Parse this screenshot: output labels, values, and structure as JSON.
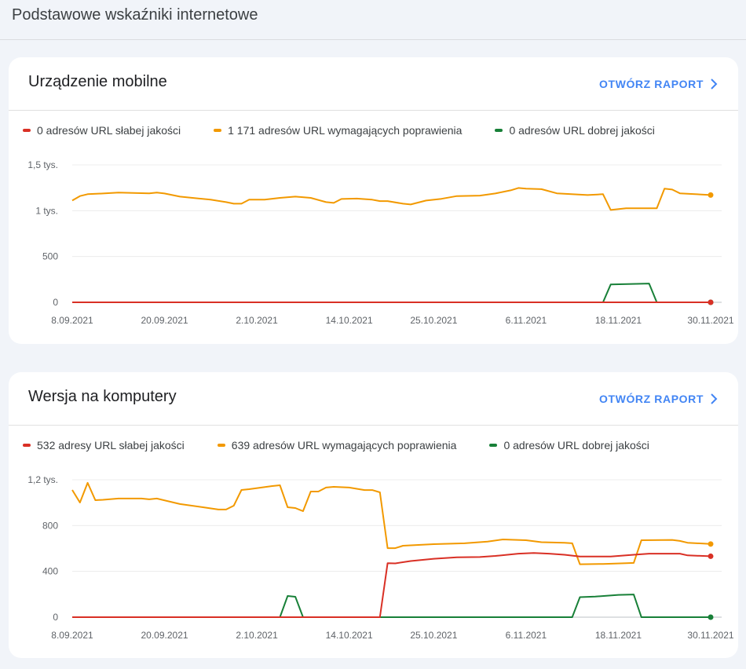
{
  "page": {
    "title": "Podstawowe wskaźniki internetowe"
  },
  "colors": {
    "poor": "#d93025",
    "needs_improvement": "#f29900",
    "good": "#188038",
    "link": "#4285f4"
  },
  "cards": [
    {
      "title": "Urządzenie mobilne",
      "link_label": "OTWÓRZ RAPORT",
      "link_icon": "chevron-right-icon",
      "legend": [
        {
          "label": "0 adresów URL słabej jakości",
          "key": "poor"
        },
        {
          "label": "1 171 adresów URL wymagających poprawienia",
          "key": "needs_improvement"
        },
        {
          "label": "0 adresów URL dobrej jakości",
          "key": "good"
        }
      ]
    },
    {
      "title": "Wersja na komputery",
      "link_label": "OTWÓRZ RAPORT",
      "link_icon": "chevron-right-icon",
      "legend": [
        {
          "label": "532 adresy URL słabej jakości",
          "key": "poor"
        },
        {
          "label": "639 adresów URL wymagających poprawienia",
          "key": "needs_improvement"
        },
        {
          "label": "0 adresów URL dobrej jakości",
          "key": "good"
        }
      ]
    }
  ],
  "chart_data": [
    {
      "type": "line",
      "xlim": [
        "2021-09-08",
        "2021-11-30"
      ],
      "ylim": [
        0,
        1500
      ],
      "yticks": [
        0,
        500,
        1000,
        1500
      ],
      "ytick_labels": [
        "0",
        "500",
        "1 tys.",
        "1,5 tys."
      ],
      "xticks": [
        "2021-09-08",
        "2021-09-20",
        "2021-10-02",
        "2021-10-14",
        "2021-10-25",
        "2021-11-06",
        "2021-11-18",
        "2021-11-30"
      ],
      "xtick_labels": [
        "8.09.2021",
        "20.09.2021",
        "2.10.2021",
        "14.10.2021",
        "25.10.2021",
        "6.11.2021",
        "18.11.2021",
        "30.11.2021"
      ],
      "grid": true,
      "series": [
        {
          "key": "good",
          "points": [
            [
              "2021-09-08",
              0
            ],
            [
              "2021-11-16",
              0
            ],
            [
              "2021-11-17",
              195
            ],
            [
              "2021-11-22",
              205
            ],
            [
              "2021-11-23",
              0
            ],
            [
              "2021-11-30",
              0
            ]
          ]
        },
        {
          "key": "needs_improvement",
          "points": [
            [
              "2021-09-08",
              1111
            ],
            [
              "2021-09-09",
              1160
            ],
            [
              "2021-09-10",
              1180
            ],
            [
              "2021-09-12",
              1188
            ],
            [
              "2021-09-14",
              1197
            ],
            [
              "2021-09-18",
              1190
            ],
            [
              "2021-09-19",
              1197
            ],
            [
              "2021-09-20",
              1188
            ],
            [
              "2021-09-22",
              1154
            ],
            [
              "2021-09-26",
              1120
            ],
            [
              "2021-09-28",
              1094
            ],
            [
              "2021-09-29",
              1077
            ],
            [
              "2021-09-30",
              1077
            ],
            [
              "2021-10-01",
              1120
            ],
            [
              "2021-10-03",
              1120
            ],
            [
              "2021-10-05",
              1140
            ],
            [
              "2021-10-07",
              1154
            ],
            [
              "2021-10-09",
              1140
            ],
            [
              "2021-10-11",
              1094
            ],
            [
              "2021-10-12",
              1085
            ],
            [
              "2021-10-13",
              1128
            ],
            [
              "2021-10-15",
              1132
            ],
            [
              "2021-10-17",
              1120
            ],
            [
              "2021-10-18",
              1105
            ],
            [
              "2021-10-19",
              1105
            ],
            [
              "2021-10-21",
              1077
            ],
            [
              "2021-10-22",
              1068
            ],
            [
              "2021-10-24",
              1111
            ],
            [
              "2021-10-26",
              1130
            ],
            [
              "2021-10-28",
              1160
            ],
            [
              "2021-10-31",
              1165
            ],
            [
              "2021-11-02",
              1188
            ],
            [
              "2021-11-04",
              1222
            ],
            [
              "2021-11-05",
              1248
            ],
            [
              "2021-11-06",
              1240
            ],
            [
              "2021-11-08",
              1235
            ],
            [
              "2021-11-10",
              1190
            ],
            [
              "2021-11-14",
              1171
            ],
            [
              "2021-11-16",
              1180
            ],
            [
              "2021-11-17",
              1008
            ],
            [
              "2021-11-19",
              1026
            ],
            [
              "2021-11-23",
              1026
            ],
            [
              "2021-11-24",
              1240
            ],
            [
              "2021-11-25",
              1231
            ],
            [
              "2021-11-26",
              1190
            ],
            [
              "2021-11-30",
              1171
            ]
          ]
        },
        {
          "key": "poor",
          "points": [
            [
              "2021-09-08",
              0
            ],
            [
              "2021-11-30",
              0
            ]
          ]
        }
      ]
    },
    {
      "type": "line",
      "xlim": [
        "2021-09-08",
        "2021-11-30"
      ],
      "ylim": [
        0,
        1200
      ],
      "yticks": [
        0,
        400,
        800,
        1200
      ],
      "ytick_labels": [
        "0",
        "400",
        "800",
        "1,2 tys."
      ],
      "xticks": [
        "2021-09-08",
        "2021-09-20",
        "2021-10-02",
        "2021-10-14",
        "2021-10-25",
        "2021-11-06",
        "2021-11-18",
        "2021-11-30"
      ],
      "xtick_labels": [
        "8.09.2021",
        "20.09.2021",
        "2.10.2021",
        "14.10.2021",
        "25.10.2021",
        "6.11.2021",
        "18.11.2021",
        "30.11.2021"
      ],
      "grid": true,
      "series": [
        {
          "key": "good",
          "points": [
            [
              "2021-09-08",
              0
            ],
            [
              "2021-10-05",
              0
            ],
            [
              "2021-10-06",
              185
            ],
            [
              "2021-10-07",
              178
            ],
            [
              "2021-10-08",
              0
            ],
            [
              "2021-11-12",
              0
            ],
            [
              "2021-11-13",
              175
            ],
            [
              "2021-11-15",
              180
            ],
            [
              "2021-11-18",
              195
            ],
            [
              "2021-11-20",
              198
            ],
            [
              "2021-11-21",
              0
            ],
            [
              "2021-11-30",
              0
            ]
          ]
        },
        {
          "key": "needs_improvement",
          "points": [
            [
              "2021-09-08",
              1111
            ],
            [
              "2021-09-09",
              1001
            ],
            [
              "2021-09-10",
              1173
            ],
            [
              "2021-09-11",
              1022
            ],
            [
              "2021-09-12",
              1025
            ],
            [
              "2021-09-14",
              1036
            ],
            [
              "2021-09-17",
              1036
            ],
            [
              "2021-09-18",
              1029
            ],
            [
              "2021-09-19",
              1036
            ],
            [
              "2021-09-22",
              988
            ],
            [
              "2021-09-25",
              960
            ],
            [
              "2021-09-27",
              940
            ],
            [
              "2021-09-28",
              940
            ],
            [
              "2021-09-29",
              974
            ],
            [
              "2021-09-30",
              1111
            ],
            [
              "2021-10-01",
              1118
            ],
            [
              "2021-10-04",
              1145
            ],
            [
              "2021-10-05",
              1152
            ],
            [
              "2021-10-06",
              960
            ],
            [
              "2021-10-07",
              953
            ],
            [
              "2021-10-08",
              926
            ],
            [
              "2021-10-09",
              1097
            ],
            [
              "2021-10-10",
              1097
            ],
            [
              "2021-10-11",
              1132
            ],
            [
              "2021-10-12",
              1138
            ],
            [
              "2021-10-14",
              1132
            ],
            [
              "2021-10-16",
              1110
            ],
            [
              "2021-10-17",
              1110
            ],
            [
              "2021-10-18",
              1090
            ],
            [
              "2021-10-19",
              603
            ],
            [
              "2021-10-20",
              603
            ],
            [
              "2021-10-21",
              624
            ],
            [
              "2021-10-25",
              638
            ],
            [
              "2021-10-29",
              645
            ],
            [
              "2021-11-01",
              660
            ],
            [
              "2021-11-03",
              679
            ],
            [
              "2021-11-06",
              672
            ],
            [
              "2021-11-08",
              655
            ],
            [
              "2021-11-11",
              650
            ],
            [
              "2021-11-12",
              645
            ],
            [
              "2021-11-13",
              462
            ],
            [
              "2021-11-16",
              465
            ],
            [
              "2021-11-19",
              472
            ],
            [
              "2021-11-20",
              474
            ],
            [
              "2021-11-21",
              672
            ],
            [
              "2021-11-25",
              675
            ],
            [
              "2021-11-26",
              666
            ],
            [
              "2021-11-27",
              650
            ],
            [
              "2021-11-30",
              639
            ]
          ]
        },
        {
          "key": "poor",
          "points": [
            [
              "2021-09-08",
              0
            ],
            [
              "2021-10-18",
              0
            ],
            [
              "2021-10-19",
              472
            ],
            [
              "2021-10-20",
              470
            ],
            [
              "2021-10-22",
              490
            ],
            [
              "2021-10-25",
              510
            ],
            [
              "2021-10-28",
              523
            ],
            [
              "2021-10-31",
              525
            ],
            [
              "2021-11-02",
              535
            ],
            [
              "2021-11-05",
              555
            ],
            [
              "2021-11-07",
              560
            ],
            [
              "2021-11-09",
              555
            ],
            [
              "2021-11-11",
              545
            ],
            [
              "2021-11-13",
              530
            ],
            [
              "2021-11-17",
              530
            ],
            [
              "2021-11-20",
              545
            ],
            [
              "2021-11-22",
              555
            ],
            [
              "2021-11-26",
              555
            ],
            [
              "2021-11-27",
              540
            ],
            [
              "2021-11-30",
              532
            ]
          ]
        }
      ]
    }
  ]
}
